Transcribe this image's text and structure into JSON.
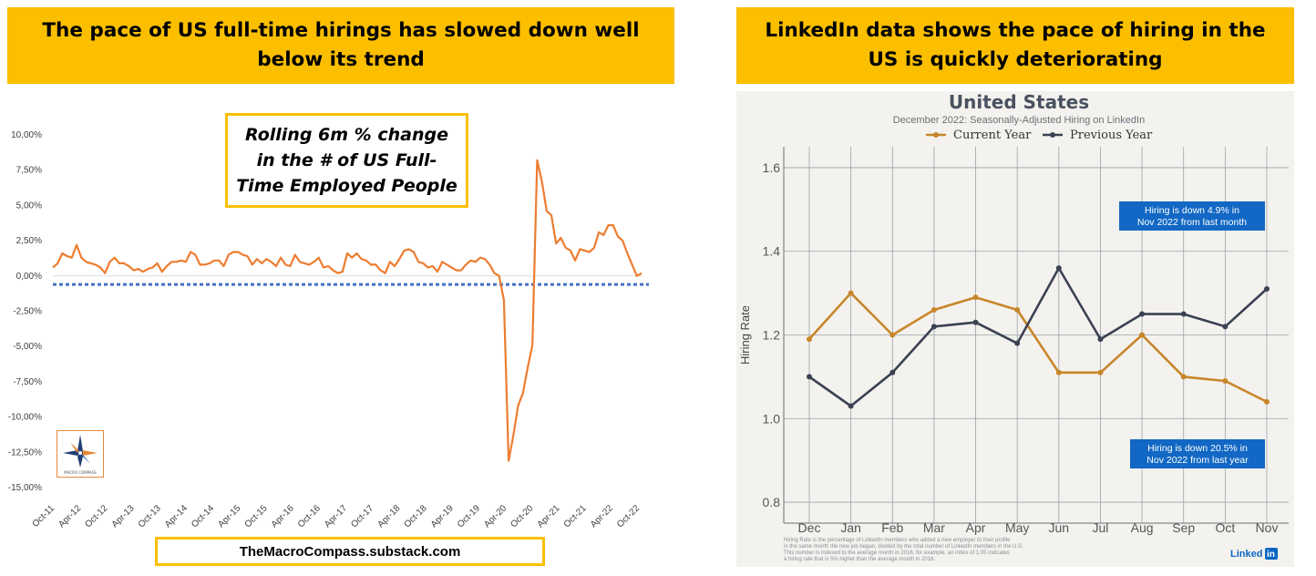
{
  "left_panel": {
    "banner": "The pace of US full-time hirings has slowed down well below its trend",
    "annotation": "Rolling 6m % change in the # of US Full-Time Employed People",
    "source": "TheMacroCompass.substack.com",
    "logo_text": "The Macro Compass"
  },
  "right_panel": {
    "banner": "LinkedIn data shows the pace of hiring in the US is quickly deteriorating",
    "footnote_lines": [
      "Hiring Rate is the percentage of LinkedIn members who added a new employer to their profile",
      "in the same month the new job began, divided by the total number of LinkedIn members in the U.S.",
      "This number is indexed to the average month in 2016; for example, an index of 1.05 indicates",
      "a hiring rate that is 5% higher than the average month in 2016."
    ],
    "brand": "LinkedIn"
  },
  "colors": {
    "banner": "#FBBF00",
    "left_line": "#ED7D31",
    "left_trend": "#4472C4",
    "current_year": "#C8862A",
    "previous_year": "#3A4252",
    "callout": "#1268C4",
    "right_bg": "#F4F2EE"
  },
  "chart_data": [
    {
      "type": "line",
      "title": "",
      "ylim": [
        -15,
        10
      ],
      "y_ticks": [
        "10,00%",
        "7,50%",
        "5,00%",
        "2,50%",
        "0,00%",
        "-2,50%",
        "-5,00%",
        "-7,50%",
        "-10,00%",
        "-12,50%",
        "-15,00%"
      ],
      "y_tick_values": [
        10,
        7.5,
        5,
        2.5,
        0,
        -2.5,
        -5,
        -7.5,
        -10,
        -12.5,
        -15
      ],
      "x_tick_labels": [
        "Oct-11",
        "Apr-12",
        "Oct-12",
        "Apr-13",
        "Oct-13",
        "Apr-14",
        "Oct-14",
        "Apr-15",
        "Oct-15",
        "Apr-16",
        "Oct-16",
        "Apr-17",
        "Oct-17",
        "Apr-18",
        "Oct-18",
        "Apr-19",
        "Oct-19",
        "Apr-20",
        "Oct-20",
        "Apr-21",
        "Oct-21",
        "Apr-22",
        "Oct-22"
      ],
      "series": [
        {
          "values": [
            0.6,
            0.9,
            1.6,
            1.4,
            1.3,
            2.2,
            1.3,
            1.0,
            0.9,
            0.8,
            0.6,
            0.2,
            1.0,
            1.3,
            0.9,
            0.9,
            0.7,
            0.4,
            0.5,
            0.3,
            0.5,
            0.6,
            0.9,
            0.3,
            0.7,
            1.0,
            1.0,
            1.1,
            1.0,
            1.7,
            1.5,
            0.8,
            0.8,
            0.9,
            1.1,
            1.1,
            0.7,
            1.5,
            1.7,
            1.7,
            1.5,
            1.4,
            0.8,
            1.2,
            0.9,
            1.2,
            1.0,
            0.7,
            1.3,
            0.8,
            0.7,
            1.5,
            1.0,
            0.9,
            0.8,
            1.0,
            1.3,
            0.6,
            0.7,
            0.4,
            0.2,
            0.3,
            1.6,
            1.3,
            1.6,
            1.2,
            1.1,
            0.8,
            0.8,
            0.4,
            0.2,
            1.0,
            0.7,
            1.2,
            1.8,
            1.9,
            1.7,
            1.0,
            0.9,
            0.6,
            0.7,
            0.3,
            1.0,
            0.8,
            0.6,
            0.4,
            0.4,
            0.8,
            1.1,
            1.0,
            1.3,
            1.2,
            0.8,
            0.2,
            0.0,
            -1.7,
            -13.1,
            -11.3,
            -9.2,
            -8.3,
            -6.5,
            -4.9,
            8.2,
            6.7,
            4.6,
            4.3,
            2.3,
            2.7,
            2.0,
            1.8,
            1.1,
            1.9,
            1.8,
            1.7,
            2.0,
            3.1,
            2.9,
            3.6,
            3.6,
            2.8,
            2.5,
            1.6,
            0.8,
            0.0,
            0.2
          ],
          "x_start": "Oct-11",
          "x_end": "Oct-22"
        }
      ],
      "reference_line": {
        "value": -0.6,
        "style": "dotted"
      }
    },
    {
      "type": "line",
      "title": "United States",
      "subtitle": "December 2022: Seasonally-Adjusted Hiring on LinkedIn",
      "ylabel": "Hiring Rate",
      "ylim": [
        0.75,
        1.65
      ],
      "y_ticks": [
        "1.6",
        "1.4",
        "1.2",
        "1.0",
        "0.8"
      ],
      "y_tick_values": [
        1.6,
        1.4,
        1.2,
        1.0,
        0.8
      ],
      "categories": [
        "Dec",
        "Jan",
        "Feb",
        "Mar",
        "Apr",
        "May",
        "Jun",
        "Jul",
        "Aug",
        "Sep",
        "Oct",
        "Nov"
      ],
      "series": [
        {
          "name": "Current Year",
          "values": [
            1.19,
            1.3,
            1.2,
            1.26,
            1.29,
            1.26,
            1.11,
            1.11,
            1.2,
            1.1,
            1.09,
            1.04
          ]
        },
        {
          "name": "Previous Year",
          "values": [
            1.1,
            1.03,
            1.11,
            1.22,
            1.23,
            1.18,
            1.36,
            1.19,
            1.25,
            1.25,
            1.22,
            1.31
          ]
        }
      ],
      "annotations": [
        {
          "lines": [
            "Hiring is down 4.9% in",
            "Nov 2022 from last month"
          ]
        },
        {
          "lines": [
            "Hiring is down 20.5% in",
            "Nov 2022 from last year"
          ]
        }
      ]
    }
  ]
}
